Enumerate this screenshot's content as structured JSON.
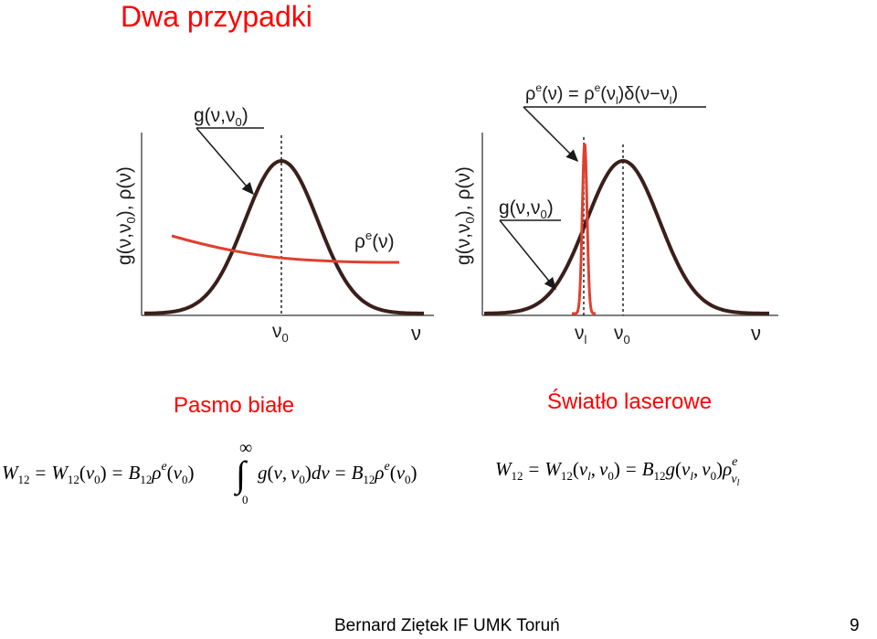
{
  "slide": {
    "title": "Dwa przypadki",
    "footer": "Bernard Ziętek IF UMK Toruń",
    "page_number": "9"
  },
  "colors": {
    "title": "#ff0000",
    "curve": "#3a1f1a",
    "red_curve": "#e0402f"
  },
  "left_panel": {
    "caption": "Pasmo białe",
    "y_axis_label": {
      "main": "g(ν,ν",
      "sub": "0",
      "rest": "),   ρ(ν)"
    },
    "gaussian_label": {
      "main": "g(ν,ν",
      "sub": "0",
      "rest": ")"
    },
    "rho_label": {
      "main": "ρ",
      "sup": "e",
      "rest": "(ν)"
    },
    "nu0_label": {
      "main": "ν",
      "sub": "0"
    },
    "x_axis_label": "ν",
    "equation": {
      "W": "W",
      "s12": "12",
      "eq": "=",
      "open": "(",
      "nu": "ν",
      "s0": "0",
      "close": ")",
      "B": "B",
      "rho": "ρ",
      "e": "e",
      "inf": "∞",
      "zero": "0",
      "integral": "∫",
      "g": "g",
      "comma": ",",
      "d": "d"
    }
  },
  "right_panel": {
    "caption": "Światło laserowe",
    "y_axis_label": {
      "main": "g(ν,ν",
      "sub": "0",
      "rest": "),   ρ(ν)"
    },
    "delta_label": {
      "rho": "ρ",
      "e": "e",
      "nu_open": "(ν) = ",
      "nu_l_open": "(ν",
      "l": "l",
      "delta": ")δ(ν−ν",
      "close": ")"
    },
    "gaussian_label": {
      "main": "g(ν,ν",
      "sub": "0",
      "rest": ")"
    },
    "nul_label": {
      "main": "ν",
      "sub": "l"
    },
    "nu0_label": {
      "main": "ν",
      "sub": "0"
    },
    "x_axis_label": "ν",
    "equation": {
      "W": "W",
      "s12": "12",
      "eq": "=",
      "open": "(",
      "nu": "ν",
      "l": "l",
      "s0": "0",
      "close": ")",
      "B": "B",
      "g": "g",
      "rho": "ρ",
      "e": "e",
      "comma": ","
    }
  }
}
